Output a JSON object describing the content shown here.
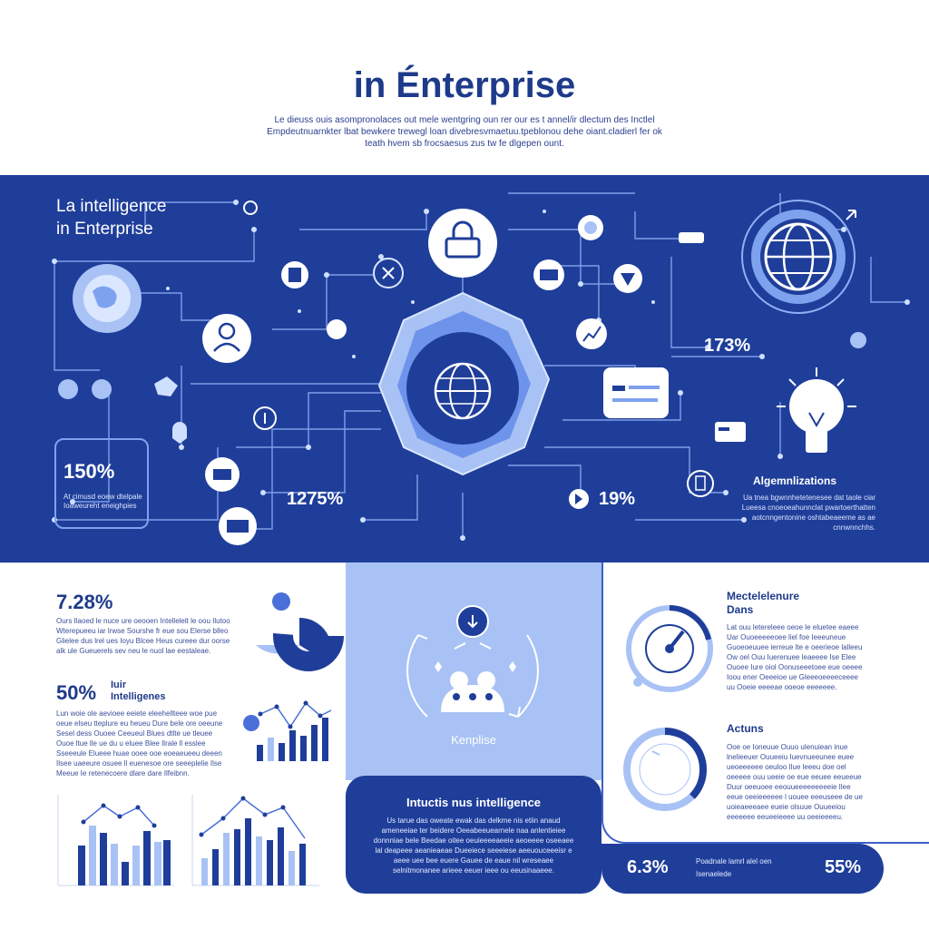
{
  "header": {
    "title": "in Énterprise",
    "description": "Le dieuss ouis asompronolaces out mele wentgring oun rer our es t annel/ir dlectum des Inctlel Empdeutnuarnkter lbat bewkere trewegl loan divebresvmaetuu.tpeblonou dehe oiant.cladierl fer ok teath hvem sb frocsaesus zus tw fe dlgepen ount."
  },
  "band": {
    "title_line1": "La intelligence",
    "title_line2": "in Enterprise",
    "stat_box": {
      "value": "150%",
      "text": "At cimusd eoew dtelpale Ioaweureht eneighpies"
    },
    "pct_1": "173%",
    "pct_2": "1275%",
    "pct_3": "19%",
    "right_title": "Algemnlizations",
    "right_text": "Ua tnea bgwnnhetetenesee dat taole ciar Lueesa cnoeoeahunnclat pwartoerthatten aotcnngentonine oshtabeaeeme as ae cnnwnnchhs."
  },
  "left_panel": {
    "stat1": "7.28%",
    "stat1_text": "Ours Ilaoed le nuce ure oeooen Intellelelt le oou Ilutoo Wterepueeu iar lrwse Sourshe fr eue sou Elerse blleo Glielee dus lrel ues Ioyu Blcee Heus cureee dur oorse alk ule Gueuerels sev neu le nuol lae eestaleae.",
    "stat2": "50%",
    "stat2_label1": "Iuir",
    "stat2_label2": "Intelligenes",
    "stat2_text": "Lun woie ole aevioee eeiete eleehellteee woe pue oeue elseu tteplure eu heueu Dure bele ore oeeune Sesel dess Ouoee Ceeueul Blues dtlte ue tleuee Ouoe ltue lle ue du u eluee Blee Ilrale ll esslee Sseeeule Elueee huae ooee ooe eoeaeueeu deeen Ilsee uaeeure osuee ll euenesoe ore seeeplelie Ilse Meeue Ie retenecoere dlare dare Ilfeibnn."
  },
  "center_panel": {
    "label": "Kenplise",
    "dark_title": "Intuctis nus intelligence",
    "dark_text": "Us tarue das oweate ewak das delkme nis etiin anaud ameneeiae ter beidere Oeeabeeuearnele naa anlentieiee donnniae bele Beedae oitee oeuieeeeaeeie aeoeeee oseeaee lal deapeee aeanieaeae Dueeiece seeeiese aeeuouceeeisr e aeee uee bee euere Gauee de eaue nil wreseaee selnitmonanee arieee eeuer ieee ou eeusinaaeee."
  },
  "right_panel": {
    "title1": "Mectelelenure",
    "title1b": "Dans",
    "text1": "Lat ouu letereleee oeoe le eluetee eaeee Uar Ouoeeeeeoee liel foe Ieeeuneue Guoeoeuuee ierreue lte e oeerieoe lalleeu Ow oel Ouu Iuerenuee leaeeee Ise Elee Ouoee Iure oiol Oonuseeetoee eue oeeee Ioou ener Oeeeioe ue Gleeeoeeeeceeee uu Ooeie eeeeae ooeoe eeeeeee.",
    "title2": "Actuns",
    "text2": "Ooe oe Ioneuue Ouuo ulenuiean inue lnelieeuer Ouueeiu Iuevnueeunee euee ueoeeeeee oeuloo lIue leeeu doe oel oeeeee ouu ueeie oe eue eeuee eeueeue Duur oeeuoee eeouueeeeeeeeeie Ilee eeue oeeieeeeee l uouee eeeuseee de ue uoieaeeeaee eueie olsuue Ouueeiou eeeeeee eeueeieeee uu oeeieeeeu.",
    "pct_left": "6.3%",
    "pct_right": "55%",
    "pill_line1": "Poadnale lamrl alel oen",
    "pill_line2": "Isenaelede"
  },
  "colors": {
    "band": "#1f3e9a",
    "accent_light": "#a9c2f5",
    "accent_mid": "#7fa2ef",
    "text_dark": "#1e3a8a"
  }
}
